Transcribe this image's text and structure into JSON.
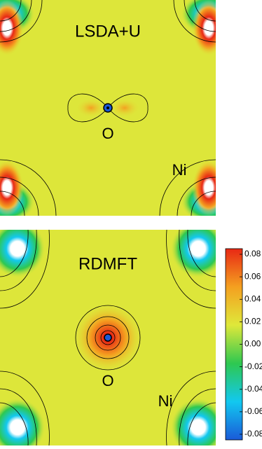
{
  "chart_data": [
    {
      "type": "contour",
      "title": "LSDA+U",
      "annotations": [
        "O",
        "Ni"
      ]
    },
    {
      "type": "contour",
      "title": "RDMFT",
      "annotations": [
        "O",
        "Ni"
      ],
      "colorscale": [
        "#1a5ad8",
        "#12c8f0",
        "#2ec850",
        "#dfe83a",
        "#f4a020",
        "#e82814"
      ],
      "zlim": [
        -0.085,
        0.085
      ],
      "zticks": [
        0.08,
        0.06,
        0.04,
        0.02,
        {
          "value": 0,
          "label": "0.00"
        },
        -0.02,
        -0.04,
        -0.06,
        -0.08
      ]
    }
  ]
}
